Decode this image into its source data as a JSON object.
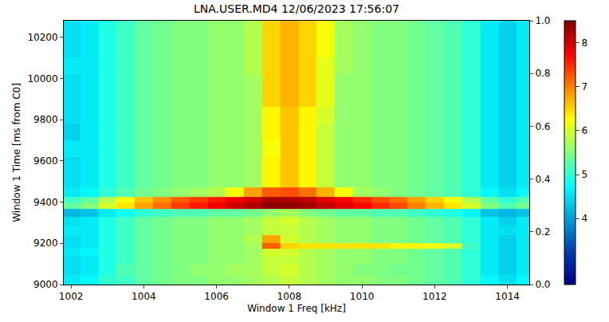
{
  "chart_data": {
    "type": "heatmap",
    "title": "LNA.USER.MD4 12/06/2023 17:56:07",
    "x_label": "Window 1 Freq [kHz]",
    "y_label": "Window 1 Time [ms from C0]",
    "color": "Jet",
    "xlim": [
      1001.8,
      1014.6
    ],
    "xticks": [
      1002,
      1004,
      1006,
      1008,
      1010,
      1012,
      1014
    ],
    "ylim": [
      9000,
      10280
    ],
    "yticks": [
      9000,
      9200,
      9400,
      9600,
      9800,
      10000,
      10200
    ],
    "y2lim": [
      0,
      1
    ],
    "y2ticks": [
      {
        "value": 0,
        "label": "0.0"
      },
      0.2,
      0.4,
      0.6,
      0.8,
      {
        "value": 1,
        "label": "1.0"
      }
    ],
    "colorbar": {
      "range": [
        2.5,
        8.5
      ],
      "ticks": [
        4,
        5,
        6,
        7,
        8
      ]
    },
    "x": [
      1002,
      1002.5,
      1003,
      1003.5,
      1004,
      1004.5,
      1005,
      1005.5,
      1006,
      1006.5,
      1007,
      1007.5,
      1008,
      1008.5,
      1009,
      1009.5,
      1010,
      1010.5,
      1011,
      1011.5,
      1012,
      1012.5,
      1013,
      1013.5,
      1014,
      1014.5
    ],
    "y": [
      9020,
      9070,
      9120,
      9160,
      9185,
      9215,
      9260,
      9310,
      9350,
      9385,
      9410,
      9440,
      9500,
      9580,
      9660,
      9740,
      9820,
      9900,
      9980,
      10060,
      10140,
      10220,
      10270
    ],
    "z": [
      [
        4.6,
        4.7,
        5.0,
        5.1,
        5.3,
        5.4,
        5.5,
        5.5,
        5.6,
        5.6,
        5.7,
        5.8,
        5.9,
        5.8,
        5.7,
        5.6,
        5.6,
        5.5,
        5.5,
        5.4,
        5.3,
        5.2,
        5.0,
        4.7,
        4.5,
        4.7
      ],
      [
        4.5,
        4.6,
        4.9,
        5.2,
        5.3,
        5.4,
        5.5,
        5.6,
        5.6,
        5.7,
        5.7,
        5.9,
        6.0,
        5.8,
        5.7,
        5.6,
        5.5,
        5.5,
        5.4,
        5.4,
        5.3,
        5.2,
        5.0,
        4.6,
        4.4,
        4.6
      ],
      [
        4.5,
        4.6,
        4.9,
        5.1,
        5.3,
        5.4,
        5.5,
        5.5,
        5.6,
        5.6,
        5.7,
        5.9,
        5.9,
        5.8,
        5.7,
        5.6,
        5.6,
        5.5,
        5.5,
        5.4,
        5.3,
        5.2,
        5.0,
        4.6,
        4.4,
        4.6
      ],
      [
        4.6,
        4.7,
        4.9,
        5.1,
        5.3,
        5.4,
        5.5,
        5.5,
        5.6,
        5.6,
        5.7,
        6.0,
        6.0,
        5.8,
        5.7,
        5.6,
        5.6,
        5.5,
        5.5,
        5.4,
        5.3,
        5.2,
        5.0,
        4.6,
        4.4,
        4.6
      ],
      [
        4.5,
        4.6,
        4.9,
        5.1,
        5.3,
        5.4,
        5.5,
        5.5,
        5.6,
        5.6,
        5.7,
        7.2,
        6.5,
        6.4,
        6.4,
        6.4,
        6.4,
        6.4,
        6.3,
        6.3,
        6.2,
        6.0,
        5.1,
        4.6,
        4.4,
        4.6
      ],
      [
        4.5,
        4.6,
        4.9,
        5.1,
        5.3,
        5.4,
        5.5,
        5.5,
        5.6,
        5.6,
        5.8,
        6.8,
        6.0,
        5.8,
        5.7,
        5.6,
        5.6,
        5.5,
        5.5,
        5.4,
        5.3,
        5.2,
        5.0,
        4.6,
        4.4,
        4.6
      ],
      [
        4.6,
        4.6,
        4.9,
        5.1,
        5.3,
        5.4,
        5.5,
        5.5,
        5.6,
        5.6,
        5.7,
        5.9,
        5.9,
        5.8,
        5.7,
        5.6,
        5.6,
        5.5,
        5.5,
        5.4,
        5.3,
        5.2,
        5.0,
        4.6,
        4.5,
        4.6
      ],
      [
        4.5,
        4.6,
        4.9,
        5.1,
        5.3,
        5.4,
        5.5,
        5.5,
        5.6,
        5.6,
        5.7,
        5.9,
        6.0,
        5.8,
        5.7,
        5.6,
        5.6,
        5.5,
        5.5,
        5.4,
        5.3,
        5.2,
        5.0,
        4.6,
        4.4,
        4.6
      ],
      [
        4.2,
        4.3,
        4.6,
        4.8,
        5.0,
        5.1,
        5.2,
        5.2,
        5.3,
        5.3,
        5.4,
        5.6,
        5.7,
        5.5,
        5.4,
        5.3,
        5.3,
        5.2,
        5.2,
        5.1,
        5.0,
        4.9,
        4.7,
        4.3,
        4.2,
        4.3
      ],
      [
        5.3,
        5.5,
        6.0,
        6.4,
        6.8,
        7.1,
        7.4,
        7.6,
        7.8,
        8.0,
        8.2,
        8.4,
        8.4,
        8.3,
        8.1,
        7.9,
        7.7,
        7.5,
        7.3,
        7.0,
        6.7,
        6.4,
        6.0,
        5.5,
        5.2,
        5.4
      ],
      [
        5.1,
        5.3,
        5.8,
        6.2,
        6.6,
        6.9,
        7.2,
        7.4,
        7.6,
        7.8,
        8.0,
        8.2,
        8.2,
        8.1,
        7.9,
        7.7,
        7.5,
        7.3,
        7.1,
        6.8,
        6.5,
        6.2,
        5.8,
        5.3,
        5.0,
        5.2
      ],
      [
        4.6,
        4.7,
        5.0,
        5.2,
        5.4,
        5.5,
        5.6,
        5.7,
        5.8,
        6.2,
        6.8,
        7.2,
        7.3,
        7.1,
        6.7,
        6.2,
        5.7,
        5.6,
        5.5,
        5.4,
        5.3,
        5.2,
        5.0,
        4.7,
        4.5,
        4.7
      ],
      [
        4.5,
        4.6,
        4.9,
        5.1,
        5.3,
        5.4,
        5.5,
        5.5,
        5.6,
        5.6,
        5.7,
        6.3,
        6.6,
        6.3,
        5.9,
        5.6,
        5.6,
        5.5,
        5.5,
        5.4,
        5.3,
        5.2,
        5.0,
        4.6,
        4.4,
        4.6
      ],
      [
        4.5,
        4.6,
        4.9,
        5.1,
        5.3,
        5.4,
        5.5,
        5.5,
        5.6,
        5.6,
        5.7,
        6.3,
        6.6,
        6.3,
        5.9,
        5.6,
        5.6,
        5.5,
        5.5,
        5.4,
        5.3,
        5.2,
        5.0,
        4.6,
        4.4,
        4.6
      ],
      [
        4.6,
        4.6,
        4.9,
        5.1,
        5.3,
        5.4,
        5.5,
        5.5,
        5.6,
        5.6,
        5.7,
        6.2,
        6.6,
        6.3,
        5.9,
        5.6,
        5.6,
        5.5,
        5.5,
        5.4,
        5.3,
        5.2,
        5.0,
        4.6,
        4.4,
        4.6
      ],
      [
        4.4,
        4.6,
        4.9,
        5.1,
        5.3,
        5.4,
        5.5,
        5.5,
        5.6,
        5.6,
        5.7,
        6.3,
        6.6,
        6.3,
        5.9,
        5.6,
        5.6,
        5.5,
        5.5,
        5.4,
        5.3,
        5.2,
        5.0,
        4.6,
        4.4,
        4.6
      ],
      [
        4.5,
        4.6,
        4.9,
        5.1,
        5.3,
        5.4,
        5.5,
        5.5,
        5.6,
        5.6,
        5.7,
        6.3,
        6.6,
        6.3,
        6.0,
        5.6,
        5.6,
        5.5,
        5.5,
        5.4,
        5.3,
        5.2,
        5.0,
        4.6,
        4.4,
        4.6
      ],
      [
        4.5,
        4.6,
        4.9,
        5.1,
        5.3,
        5.4,
        5.5,
        5.5,
        5.6,
        5.6,
        5.7,
        6.5,
        6.7,
        6.5,
        6.1,
        5.6,
        5.6,
        5.5,
        5.5,
        5.4,
        5.3,
        5.2,
        5.0,
        4.6,
        4.4,
        4.6
      ],
      [
        4.5,
        4.6,
        4.9,
        5.1,
        5.3,
        5.4,
        5.5,
        5.5,
        5.6,
        5.6,
        5.7,
        6.5,
        6.7,
        6.5,
        6.1,
        5.6,
        5.6,
        5.5,
        5.5,
        5.4,
        5.3,
        5.2,
        5.0,
        4.6,
        4.4,
        4.6
      ],
      [
        4.6,
        4.6,
        4.9,
        5.1,
        5.3,
        5.4,
        5.5,
        5.5,
        5.6,
        5.6,
        5.8,
        6.5,
        6.7,
        6.5,
        6.1,
        5.7,
        5.6,
        5.5,
        5.5,
        5.4,
        5.3,
        5.2,
        5.0,
        4.6,
        4.4,
        4.6
      ],
      [
        4.5,
        4.6,
        4.9,
        5.1,
        5.3,
        5.4,
        5.5,
        5.5,
        5.6,
        5.6,
        5.8,
        6.5,
        6.7,
        6.5,
        6.2,
        5.7,
        5.6,
        5.5,
        5.5,
        5.4,
        5.3,
        5.2,
        5.0,
        4.6,
        4.4,
        4.6
      ],
      [
        4.5,
        4.6,
        4.9,
        5.1,
        5.3,
        5.4,
        5.5,
        5.5,
        5.6,
        5.6,
        5.8,
        6.5,
        6.7,
        6.5,
        6.2,
        5.7,
        5.6,
        5.5,
        5.5,
        5.4,
        5.3,
        5.2,
        5.0,
        4.6,
        4.4,
        4.6
      ],
      [
        4.5,
        4.6,
        4.9,
        5.1,
        5.3,
        5.4,
        5.5,
        5.5,
        5.6,
        5.6,
        5.8,
        6.5,
        6.7,
        6.5,
        6.2,
        5.7,
        5.6,
        5.5,
        5.5,
        5.4,
        5.3,
        5.2,
        5.0,
        4.6,
        4.4,
        4.6
      ]
    ]
  }
}
